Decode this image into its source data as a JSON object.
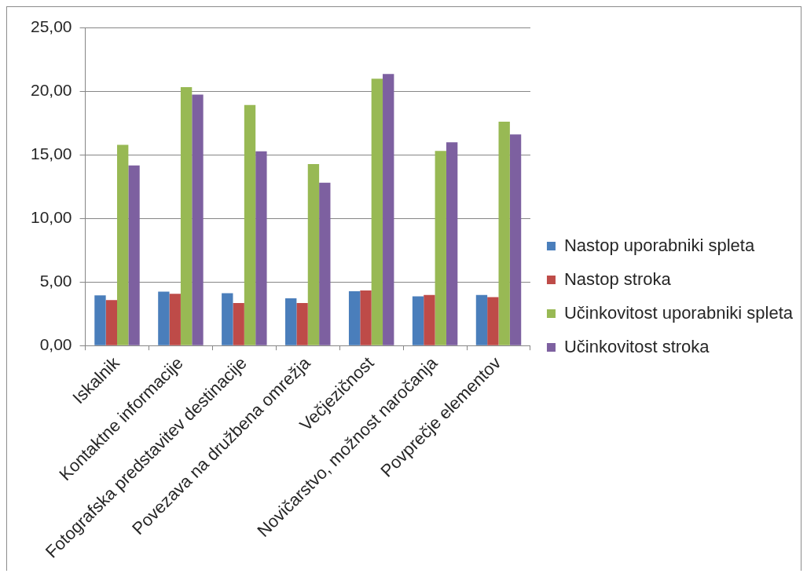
{
  "chart_data": {
    "type": "bar",
    "categories": [
      "Iskalnik",
      "Kontaktne informacije",
      "Fotografska predstavitev destinacije",
      "Povezava na družbena omrežja",
      "Večjezičnost",
      "Novičarstvo, možnost naročanja",
      "Povprečje elementov"
    ],
    "series": [
      {
        "name": "Nastop uporabniki spleta",
        "color": "#4a7ebb",
        "values": [
          3.95,
          4.23,
          4.12,
          3.71,
          4.27,
          3.86,
          3.98
        ]
      },
      {
        "name": "Nastop stroka",
        "color": "#be4b48",
        "values": [
          3.57,
          4.06,
          3.34,
          3.34,
          4.33,
          3.98,
          3.81
        ]
      },
      {
        "name": "Učinkovitost uporabniki spleta",
        "color": "#98b954",
        "values": [
          15.77,
          20.31,
          18.91,
          14.27,
          20.97,
          15.3,
          17.59
        ]
      },
      {
        "name": "Učinkovitost stroka",
        "color": "#7d60a0",
        "values": [
          14.16,
          19.73,
          15.26,
          12.8,
          21.34,
          15.98,
          16.6
        ]
      }
    ],
    "ylim": [
      0,
      25
    ],
    "yticks": [
      {
        "value": 0,
        "label": "0,00"
      },
      {
        "value": 5,
        "label": "5,00"
      },
      {
        "value": 10,
        "label": "10,00"
      },
      {
        "value": 15,
        "label": "15,00"
      },
      {
        "value": 20,
        "label": "20,00"
      },
      {
        "value": 25,
        "label": "25,00"
      }
    ],
    "grid": "y",
    "legend": "right"
  }
}
